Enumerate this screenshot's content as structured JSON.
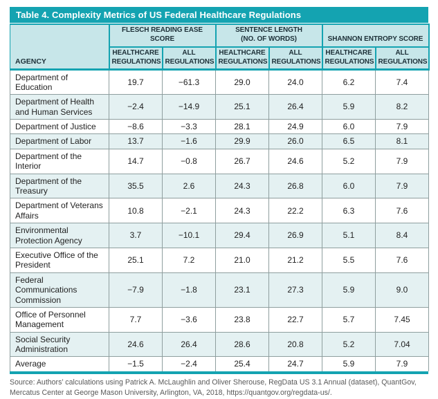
{
  "title": "Table 4. Complexity Metrics of US Federal Healthcare Regulations",
  "colors": {
    "teal_accent": "#14a3b1",
    "header_background": "#c7e6e9",
    "alternate_row_background": "#e4f1f2",
    "grid_line": "#8e9e9e",
    "header_text": "#1d3038",
    "body_text": "#222222",
    "source_text": "#595959",
    "title_text": "#ffffff"
  },
  "table": {
    "agency_header": "AGENCY",
    "groups": [
      {
        "label": "FLESCH READING EASE SCORE"
      },
      {
        "label": "SENTENCE LENGTH\n(NO. OF WORDS)"
      },
      {
        "label": "SHANNON ENTROPY SCORE"
      }
    ],
    "subheaders": [
      "HEALTHCARE\nREGULATIONS",
      "ALL\nREGULATIONS",
      "HEALTHCARE\nREGULATIONS",
      "ALL\nREGULATIONS",
      "HEALTHCARE\nREGULATIONS",
      "ALL\nREGULATIONS"
    ],
    "rows": [
      {
        "agency": "Department of\nEducation",
        "values": [
          "19.7",
          "−61.3",
          "29.0",
          "24.0",
          "6.2",
          "7.4"
        ]
      },
      {
        "agency": "Department of Health\nand Human Services",
        "values": [
          "−2.4",
          "−14.9",
          "25.1",
          "26.4",
          "5.9",
          "8.2"
        ]
      },
      {
        "agency": "Department of Justice",
        "values": [
          "−8.6",
          "−3.3",
          "28.1",
          "24.9",
          "6.0",
          "7.9"
        ]
      },
      {
        "agency": "Department of Labor",
        "values": [
          "13.7",
          "−1.6",
          "29.9",
          "26.0",
          "6.5",
          "8.1"
        ]
      },
      {
        "agency": "Department of the\nInterior",
        "values": [
          "14.7",
          "−0.8",
          "26.7",
          "24.6",
          "5.2",
          "7.9"
        ]
      },
      {
        "agency": "Department of the\nTreasury",
        "values": [
          "35.5",
          "2.6",
          "24.3",
          "26.8",
          "6.0",
          "7.9"
        ]
      },
      {
        "agency": "Department of Veterans\nAffairs",
        "values": [
          "10.8",
          "−2.1",
          "24.3",
          "22.2",
          "6.3",
          "7.6"
        ]
      },
      {
        "agency": "Environmental\nProtection Agency",
        "values": [
          "3.7",
          "−10.1",
          "29.4",
          "26.9",
          "5.1",
          "8.4"
        ]
      },
      {
        "agency": "Executive Office of the\nPresident",
        "values": [
          "25.1",
          "7.2",
          "21.0",
          "21.2",
          "5.5",
          "7.6"
        ]
      },
      {
        "agency": "Federal\nCommunications\nCommission",
        "values": [
          "−7.9",
          "−1.8",
          "23.1",
          "27.3",
          "5.9",
          "9.0"
        ]
      },
      {
        "agency": "Office of Personnel\nManagement",
        "values": [
          "7.7",
          "−3.6",
          "23.8",
          "22.7",
          "5.7",
          "7.45"
        ]
      },
      {
        "agency": "Social Security\nAdministration",
        "values": [
          "24.6",
          "26.4",
          "28.6",
          "20.8",
          "5.2",
          "7.04"
        ]
      },
      {
        "agency": "Average",
        "values": [
          "−1.5",
          "−2.4",
          "25.4",
          "24.7",
          "5.9",
          "7.9"
        ]
      }
    ]
  },
  "source_note": "Source: Authors’ calculations using Patrick A. McLaughlin and Oliver Sherouse, RegData US 3.1 Annual (dataset), QuantGov, Mercatus Center at George Mason University, Arlington, VA, 2018, https://quantgov.org/regdata-us/."
}
